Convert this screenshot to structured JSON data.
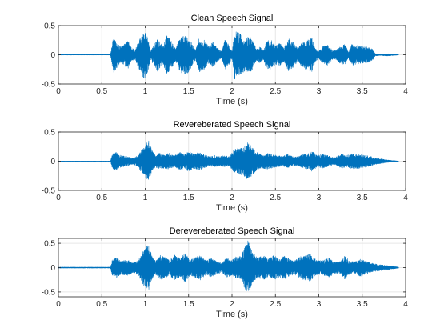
{
  "figure": {
    "background": "#ffffff",
    "line_color": "#0072BD",
    "grid_color": "#e6e6e6",
    "axis_color": "#262626"
  },
  "chart_data": [
    {
      "type": "line",
      "title": "Clean Speech Signal",
      "xlabel": "Time (s)",
      "ylabel": "",
      "xlim": [
        0,
        4
      ],
      "ylim": [
        -0.5,
        0.5
      ],
      "xticks": [
        0,
        0.5,
        1,
        1.5,
        2,
        2.5,
        3,
        3.5,
        4
      ],
      "xtick_labels": [
        "0",
        "0.5",
        "1",
        "1.5",
        "2",
        "2.5",
        "3",
        "3.5",
        "4"
      ],
      "yticks": [
        -0.5,
        0,
        0.5
      ],
      "ytick_labels": [
        "-0.5",
        "0",
        "0.5"
      ],
      "grid": true,
      "signal_end": 3.92,
      "envelope": [
        [
          0.0,
          0.004
        ],
        [
          0.6,
          0.004
        ],
        [
          0.62,
          0.2
        ],
        [
          0.64,
          0.32
        ],
        [
          0.68,
          0.2
        ],
        [
          0.72,
          0.14
        ],
        [
          0.8,
          0.24
        ],
        [
          0.84,
          0.14
        ],
        [
          0.88,
          0.08
        ],
        [
          0.92,
          0.22
        ],
        [
          0.98,
          0.44
        ],
        [
          1.03,
          0.3
        ],
        [
          1.06,
          0.08
        ],
        [
          1.1,
          0.18
        ],
        [
          1.14,
          0.3
        ],
        [
          1.2,
          0.14
        ],
        [
          1.25,
          0.34
        ],
        [
          1.3,
          0.24
        ],
        [
          1.35,
          0.1
        ],
        [
          1.4,
          0.3
        ],
        [
          1.45,
          0.34
        ],
        [
          1.5,
          0.3
        ],
        [
          1.55,
          0.16
        ],
        [
          1.58,
          0.08
        ],
        [
          1.62,
          0.3
        ],
        [
          1.68,
          0.26
        ],
        [
          1.73,
          0.14
        ],
        [
          1.78,
          0.22
        ],
        [
          1.83,
          0.12
        ],
        [
          1.88,
          0.06
        ],
        [
          1.92,
          0.26
        ],
        [
          1.97,
          0.16
        ],
        [
          2.0,
          0.06
        ],
        [
          2.03,
          0.42
        ],
        [
          2.1,
          0.36
        ],
        [
          2.16,
          0.26
        ],
        [
          2.2,
          0.34
        ],
        [
          2.24,
          0.24
        ],
        [
          2.28,
          0.1
        ],
        [
          2.32,
          0.14
        ],
        [
          2.36,
          0.08
        ],
        [
          2.4,
          0.24
        ],
        [
          2.45,
          0.26
        ],
        [
          2.5,
          0.16
        ],
        [
          2.55,
          0.2
        ],
        [
          2.6,
          0.12
        ],
        [
          2.65,
          0.28
        ],
        [
          2.72,
          0.2
        ],
        [
          2.76,
          0.1
        ],
        [
          2.8,
          0.2
        ],
        [
          2.86,
          0.26
        ],
        [
          2.92,
          0.3
        ],
        [
          2.96,
          0.12
        ],
        [
          3.0,
          0.06
        ],
        [
          3.04,
          0.14
        ],
        [
          3.1,
          0.18
        ],
        [
          3.16,
          0.08
        ],
        [
          3.2,
          0.08
        ],
        [
          3.24,
          0.14
        ],
        [
          3.3,
          0.18
        ],
        [
          3.34,
          0.06
        ],
        [
          3.38,
          0.18
        ],
        [
          3.46,
          0.16
        ],
        [
          3.55,
          0.14
        ],
        [
          3.62,
          0.1
        ],
        [
          3.65,
          0.02
        ],
        [
          3.7,
          0.01
        ],
        [
          3.78,
          0.02
        ],
        [
          3.92,
          0.004
        ]
      ]
    },
    {
      "type": "line",
      "title": "Revereberated Speech Signal",
      "xlabel": "Time (s)",
      "ylabel": "",
      "xlim": [
        0,
        4
      ],
      "ylim": [
        -0.5,
        0.5
      ],
      "xticks": [
        0,
        0.5,
        1,
        1.5,
        2,
        2.5,
        3,
        3.5,
        4
      ],
      "xtick_labels": [
        "0",
        "0.5",
        "1",
        "1.5",
        "2",
        "2.5",
        "3",
        "3.5",
        "4"
      ],
      "yticks": [
        -0.5,
        0,
        0.5
      ],
      "ytick_labels": [
        "-0.5",
        "0",
        "0.5"
      ],
      "grid": true,
      "signal_end": 3.92,
      "envelope": [
        [
          0.0,
          0.003
        ],
        [
          0.6,
          0.003
        ],
        [
          0.62,
          0.12
        ],
        [
          0.66,
          0.16
        ],
        [
          0.72,
          0.1
        ],
        [
          0.8,
          0.08
        ],
        [
          0.86,
          0.05
        ],
        [
          0.92,
          0.1
        ],
        [
          0.98,
          0.26
        ],
        [
          1.04,
          0.36
        ],
        [
          1.08,
          0.18
        ],
        [
          1.12,
          0.1
        ],
        [
          1.16,
          0.14
        ],
        [
          1.22,
          0.12
        ],
        [
          1.28,
          0.14
        ],
        [
          1.34,
          0.1
        ],
        [
          1.4,
          0.16
        ],
        [
          1.45,
          0.12
        ],
        [
          1.5,
          0.18
        ],
        [
          1.56,
          0.12
        ],
        [
          1.62,
          0.16
        ],
        [
          1.68,
          0.12
        ],
        [
          1.74,
          0.08
        ],
        [
          1.8,
          0.1
        ],
        [
          1.86,
          0.08
        ],
        [
          1.92,
          0.1
        ],
        [
          1.97,
          0.08
        ],
        [
          2.02,
          0.2
        ],
        [
          2.08,
          0.22
        ],
        [
          2.14,
          0.26
        ],
        [
          2.18,
          0.32
        ],
        [
          2.22,
          0.26
        ],
        [
          2.28,
          0.16
        ],
        [
          2.34,
          0.12
        ],
        [
          2.4,
          0.14
        ],
        [
          2.46,
          0.12
        ],
        [
          2.52,
          0.1
        ],
        [
          2.58,
          0.08
        ],
        [
          2.64,
          0.12
        ],
        [
          2.7,
          0.08
        ],
        [
          2.76,
          0.08
        ],
        [
          2.82,
          0.12
        ],
        [
          2.88,
          0.14
        ],
        [
          2.92,
          0.18
        ],
        [
          2.98,
          0.1
        ],
        [
          3.04,
          0.12
        ],
        [
          3.1,
          0.1
        ],
        [
          3.18,
          0.06
        ],
        [
          3.26,
          0.12
        ],
        [
          3.32,
          0.1
        ],
        [
          3.4,
          0.14
        ],
        [
          3.48,
          0.12
        ],
        [
          3.56,
          0.1
        ],
        [
          3.64,
          0.06
        ],
        [
          3.72,
          0.04
        ],
        [
          3.8,
          0.02
        ],
        [
          3.92,
          0.003
        ]
      ]
    },
    {
      "type": "line",
      "title": "Derevereberated Speech Signal",
      "xlabel": "Time (s)",
      "ylabel": "",
      "xlim": [
        0,
        4
      ],
      "ylim": [
        -0.6,
        0.6
      ],
      "xticks": [
        0,
        0.5,
        1,
        1.5,
        2,
        2.5,
        3,
        3.5,
        4
      ],
      "xtick_labels": [
        "0",
        "0.5",
        "1",
        "1.5",
        "2",
        "2.5",
        "3",
        "3.5",
        "4"
      ],
      "yticks": [
        -0.5,
        0,
        0.5
      ],
      "ytick_labels": [
        "-0.5",
        "0",
        "0.5"
      ],
      "grid": true,
      "signal_end": 3.92,
      "envelope": [
        [
          0.0,
          0.01
        ],
        [
          0.6,
          0.01
        ],
        [
          0.62,
          0.16
        ],
        [
          0.66,
          0.22
        ],
        [
          0.72,
          0.14
        ],
        [
          0.8,
          0.16
        ],
        [
          0.86,
          0.1
        ],
        [
          0.92,
          0.16
        ],
        [
          0.98,
          0.36
        ],
        [
          1.04,
          0.48
        ],
        [
          1.08,
          0.22
        ],
        [
          1.12,
          0.14
        ],
        [
          1.18,
          0.26
        ],
        [
          1.22,
          0.22
        ],
        [
          1.28,
          0.16
        ],
        [
          1.34,
          0.26
        ],
        [
          1.4,
          0.2
        ],
        [
          1.46,
          0.3
        ],
        [
          1.52,
          0.16
        ],
        [
          1.58,
          0.22
        ],
        [
          1.64,
          0.26
        ],
        [
          1.7,
          0.14
        ],
        [
          1.76,
          0.2
        ],
        [
          1.82,
          0.14
        ],
        [
          1.88,
          0.1
        ],
        [
          1.94,
          0.2
        ],
        [
          2.0,
          0.16
        ],
        [
          2.04,
          0.22
        ],
        [
          2.1,
          0.24
        ],
        [
          2.14,
          0.4
        ],
        [
          2.18,
          0.58
        ],
        [
          2.24,
          0.3
        ],
        [
          2.3,
          0.2
        ],
        [
          2.36,
          0.26
        ],
        [
          2.42,
          0.18
        ],
        [
          2.48,
          0.26
        ],
        [
          2.54,
          0.2
        ],
        [
          2.6,
          0.24
        ],
        [
          2.66,
          0.18
        ],
        [
          2.72,
          0.14
        ],
        [
          2.78,
          0.22
        ],
        [
          2.84,
          0.26
        ],
        [
          2.9,
          0.3
        ],
        [
          2.94,
          0.2
        ],
        [
          3.0,
          0.14
        ],
        [
          3.06,
          0.16
        ],
        [
          3.12,
          0.2
        ],
        [
          3.18,
          0.12
        ],
        [
          3.24,
          0.12
        ],
        [
          3.3,
          0.24
        ],
        [
          3.36,
          0.14
        ],
        [
          3.42,
          0.12
        ],
        [
          3.48,
          0.18
        ],
        [
          3.56,
          0.12
        ],
        [
          3.64,
          0.08
        ],
        [
          3.72,
          0.06
        ],
        [
          3.8,
          0.04
        ],
        [
          3.92,
          0.01
        ]
      ]
    }
  ]
}
